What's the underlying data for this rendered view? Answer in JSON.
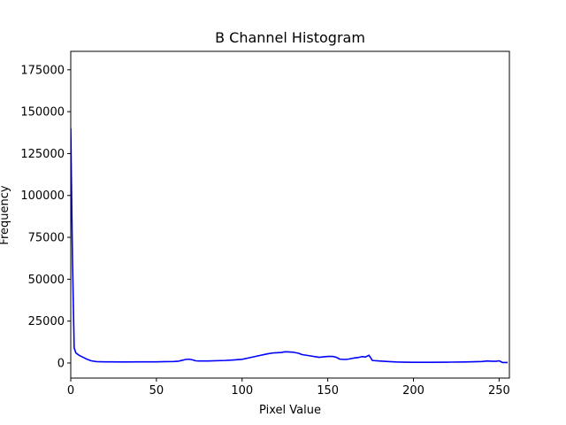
{
  "chart_data": {
    "type": "line",
    "title": "B Channel Histogram",
    "xlabel": "Pixel Value",
    "ylabel": "Frequency",
    "xlim": [
      0,
      256
    ],
    "ylim": [
      -9000,
      186000
    ],
    "xticks": [
      0,
      50,
      100,
      150,
      200,
      250
    ],
    "yticks": [
      0,
      25000,
      50000,
      75000,
      100000,
      125000,
      150000,
      175000
    ],
    "grid": false,
    "legend": "none",
    "series": [
      {
        "color": "#0000ff",
        "x": [
          0,
          1,
          2,
          3,
          5,
          8,
          10,
          12,
          15,
          20,
          30,
          40,
          50,
          55,
          60,
          63,
          65,
          67,
          69,
          71,
          73,
          75,
          80,
          90,
          95,
          100,
          105,
          110,
          115,
          118,
          120,
          123,
          125,
          127,
          130,
          133,
          135,
          140,
          145,
          150,
          153,
          155,
          157,
          160,
          162,
          165,
          168,
          170,
          172,
          174,
          175,
          176,
          180,
          185,
          190,
          195,
          200,
          210,
          220,
          230,
          240,
          243,
          245,
          248,
          250,
          252,
          255
        ],
        "y": [
          140000,
          62000,
          9000,
          6000,
          4500,
          3000,
          2000,
          1300,
          800,
          700,
          600,
          700,
          700,
          800,
          900,
          1100,
          1600,
          2100,
          2300,
          1900,
          1300,
          1200,
          1200,
          1500,
          1800,
          2200,
          3300,
          4400,
          5500,
          6000,
          6100,
          6300,
          6700,
          6600,
          6400,
          5800,
          5000,
          4200,
          3400,
          3900,
          3900,
          3400,
          2300,
          2100,
          2300,
          2900,
          3300,
          3800,
          3600,
          4600,
          3200,
          1500,
          1200,
          900,
          600,
          500,
          400,
          400,
          500,
          600,
          900,
          1200,
          1100,
          1000,
          1300,
          300,
          300
        ]
      }
    ]
  }
}
